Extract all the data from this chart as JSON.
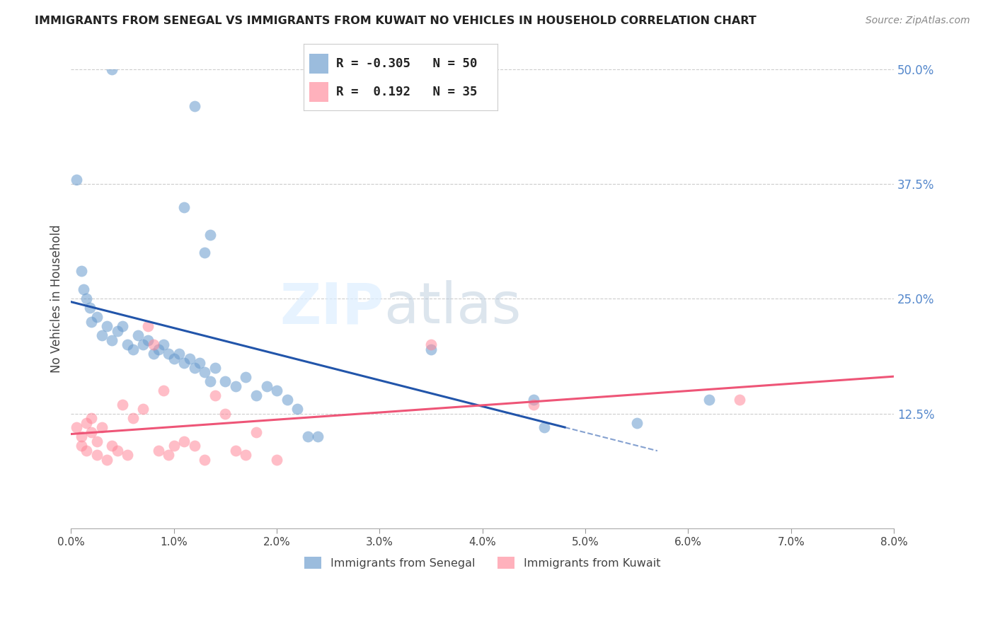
{
  "title": "IMMIGRANTS FROM SENEGAL VS IMMIGRANTS FROM KUWAIT NO VEHICLES IN HOUSEHOLD CORRELATION CHART",
  "source": "Source: ZipAtlas.com",
  "ylabel": "No Vehicles in Household",
  "x_min": 0.0,
  "x_max": 8.0,
  "y_min": 0.0,
  "y_max": 50.0,
  "y_ticks": [
    0.0,
    12.5,
    25.0,
    37.5,
    50.0
  ],
  "x_ticks": [
    0.0,
    1.0,
    2.0,
    3.0,
    4.0,
    5.0,
    6.0,
    7.0,
    8.0
  ],
  "senegal_R": -0.305,
  "senegal_N": 50,
  "kuwait_R": 0.192,
  "kuwait_N": 35,
  "senegal_color": "#6699CC",
  "kuwait_color": "#FF8899",
  "senegal_line_color": "#2255AA",
  "kuwait_line_color": "#EE5577",
  "senegal_label": "Immigrants from Senegal",
  "kuwait_label": "Immigrants from Kuwait",
  "background_color": "#FFFFFF",
  "senegal_x": [
    0.4,
    1.2,
    1.1,
    1.3,
    1.35,
    0.05,
    0.1,
    0.12,
    0.15,
    0.18,
    0.2,
    0.25,
    0.3,
    0.35,
    0.4,
    0.45,
    0.5,
    0.55,
    0.6,
    0.65,
    0.7,
    0.75,
    0.8,
    0.85,
    0.9,
    0.95,
    1.0,
    1.05,
    1.1,
    1.15,
    1.2,
    1.25,
    1.3,
    1.35,
    1.4,
    1.5,
    1.6,
    1.7,
    1.8,
    1.9,
    2.0,
    2.1,
    2.2,
    2.3,
    2.4,
    3.5,
    4.5,
    4.6,
    5.5,
    6.2
  ],
  "senegal_y": [
    50.0,
    46.0,
    35.0,
    30.0,
    32.0,
    38.0,
    28.0,
    26.0,
    25.0,
    24.0,
    22.5,
    23.0,
    21.0,
    22.0,
    20.5,
    21.5,
    22.0,
    20.0,
    19.5,
    21.0,
    20.0,
    20.5,
    19.0,
    19.5,
    20.0,
    19.0,
    18.5,
    19.0,
    18.0,
    18.5,
    17.5,
    18.0,
    17.0,
    16.0,
    17.5,
    16.0,
    15.5,
    16.5,
    14.5,
    15.5,
    15.0,
    14.0,
    13.0,
    10.0,
    10.0,
    19.5,
    14.0,
    11.0,
    11.5,
    14.0
  ],
  "kuwait_x": [
    0.05,
    0.1,
    0.1,
    0.15,
    0.15,
    0.2,
    0.2,
    0.25,
    0.25,
    0.3,
    0.35,
    0.4,
    0.45,
    0.5,
    0.55,
    0.6,
    0.7,
    0.75,
    0.8,
    0.85,
    0.9,
    0.95,
    1.0,
    1.1,
    1.2,
    1.3,
    1.4,
    1.5,
    1.6,
    1.7,
    1.8,
    2.0,
    3.5,
    4.5,
    6.5
  ],
  "kuwait_y": [
    11.0,
    10.0,
    9.0,
    11.5,
    8.5,
    12.0,
    10.5,
    9.5,
    8.0,
    11.0,
    7.5,
    9.0,
    8.5,
    13.5,
    8.0,
    12.0,
    13.0,
    22.0,
    20.0,
    8.5,
    15.0,
    8.0,
    9.0,
    9.5,
    9.0,
    7.5,
    14.5,
    12.5,
    8.5,
    8.0,
    10.5,
    7.5,
    20.0,
    13.5,
    14.0
  ]
}
